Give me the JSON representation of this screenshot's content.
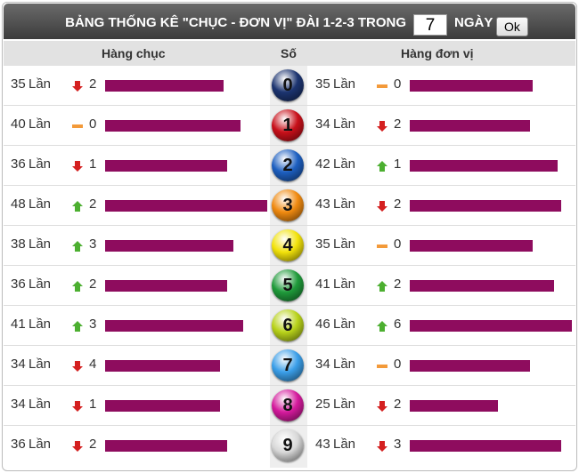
{
  "header": {
    "title": "BẢNG THỐNG KÊ \"CHỤC - ĐƠN VỊ\" ĐÀI 1-2-3 TRONG",
    "days": 7,
    "days_label": "NGÀY",
    "button": "Ok"
  },
  "columns": {
    "tens": "Hàng chục",
    "digit": "Số",
    "units": "Hàng đơn vị"
  },
  "unit": "Lần",
  "bar_color": "#8e0c5e",
  "rows": [
    {
      "digit": 0,
      "ball_color": "#1c3470",
      "tens": {
        "count": 35,
        "trend": "down",
        "change": 2
      },
      "units": {
        "count": 35,
        "trend": "same",
        "change": 0
      }
    },
    {
      "digit": 1,
      "ball_color": "#c8101a",
      "tens": {
        "count": 40,
        "trend": "same",
        "change": 0
      },
      "units": {
        "count": 34,
        "trend": "down",
        "change": 2
      }
    },
    {
      "digit": 2,
      "ball_color": "#1d5fc0",
      "tens": {
        "count": 36,
        "trend": "down",
        "change": 1
      },
      "units": {
        "count": 42,
        "trend": "up",
        "change": 1
      }
    },
    {
      "digit": 3,
      "ball_color": "#f08a10",
      "tens": {
        "count": 48,
        "trend": "up",
        "change": 2
      },
      "units": {
        "count": 43,
        "trend": "down",
        "change": 2
      }
    },
    {
      "digit": 4,
      "ball_color": "#f2e20a",
      "tens": {
        "count": 38,
        "trend": "up",
        "change": 3
      },
      "units": {
        "count": 35,
        "trend": "same",
        "change": 0
      }
    },
    {
      "digit": 5,
      "ball_color": "#1f9a3a",
      "tens": {
        "count": 36,
        "trend": "up",
        "change": 2
      },
      "units": {
        "count": 41,
        "trend": "up",
        "change": 2
      }
    },
    {
      "digit": 6,
      "ball_color": "#b8d21a",
      "tens": {
        "count": 41,
        "trend": "up",
        "change": 3
      },
      "units": {
        "count": 46,
        "trend": "up",
        "change": 6
      }
    },
    {
      "digit": 7,
      "ball_color": "#3a9ee8",
      "tens": {
        "count": 34,
        "trend": "down",
        "change": 4
      },
      "units": {
        "count": 34,
        "trend": "same",
        "change": 0
      }
    },
    {
      "digit": 8,
      "ball_color": "#d41a9c",
      "tens": {
        "count": 34,
        "trend": "down",
        "change": 1
      },
      "units": {
        "count": 25,
        "trend": "down",
        "change": 2
      }
    },
    {
      "digit": 9,
      "ball_color": "#d8d8d8",
      "tens": {
        "count": 36,
        "trend": "down",
        "change": 2
      },
      "units": {
        "count": 43,
        "trend": "down",
        "change": 3
      }
    }
  ]
}
